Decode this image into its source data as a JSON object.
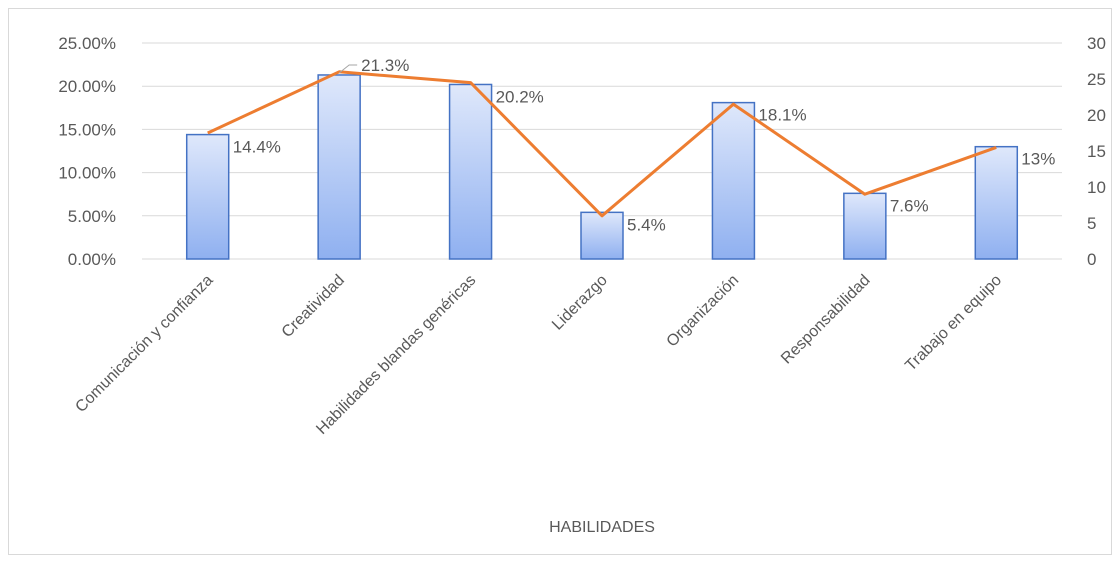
{
  "chart_data": {
    "type": "bar",
    "xlabel": "HABILIDADES",
    "categories": [
      "Comunicación y confianza",
      "Creatividad",
      "Habilidades blandas genéricas",
      "Liderazgo",
      "Organización",
      "Responsabilidad",
      "Trabajo en equipo"
    ],
    "series": [
      {
        "type": "bar",
        "axis": "left",
        "values": [
          14.4,
          21.3,
          20.2,
          5.4,
          18.1,
          7.6,
          13.0
        ],
        "data_labels": [
          "14.4%",
          "21.3%",
          "20.2%",
          "5.4%",
          "18.1%",
          "7.6%",
          "13%"
        ]
      },
      {
        "type": "line",
        "axis": "right",
        "values": [
          17.5,
          26,
          24.5,
          6,
          21.5,
          9,
          15.5
        ]
      }
    ],
    "y_left": {
      "ylim": [
        0,
        25
      ],
      "ticks": [
        0,
        5,
        10,
        15,
        20,
        25
      ],
      "tick_labels": [
        "0.00%",
        "5.00%",
        "10.00%",
        "15.00%",
        "20.00%",
        "25.00%"
      ]
    },
    "y_right": {
      "ylim": [
        0,
        30
      ],
      "ticks": [
        0,
        5,
        10,
        15,
        20,
        25,
        30
      ],
      "tick_labels": [
        "0",
        "5",
        "10",
        "15",
        "20",
        "25",
        "30"
      ]
    },
    "grid": true,
    "legend": "none",
    "colors": {
      "bar_fill_top": "#dfe8fb",
      "bar_fill_bottom": "#8fb0f0",
      "bar_stroke": "#4472c4",
      "line": "#ed7d31",
      "grid": "#d9d9d9",
      "text": "#595959"
    }
  }
}
